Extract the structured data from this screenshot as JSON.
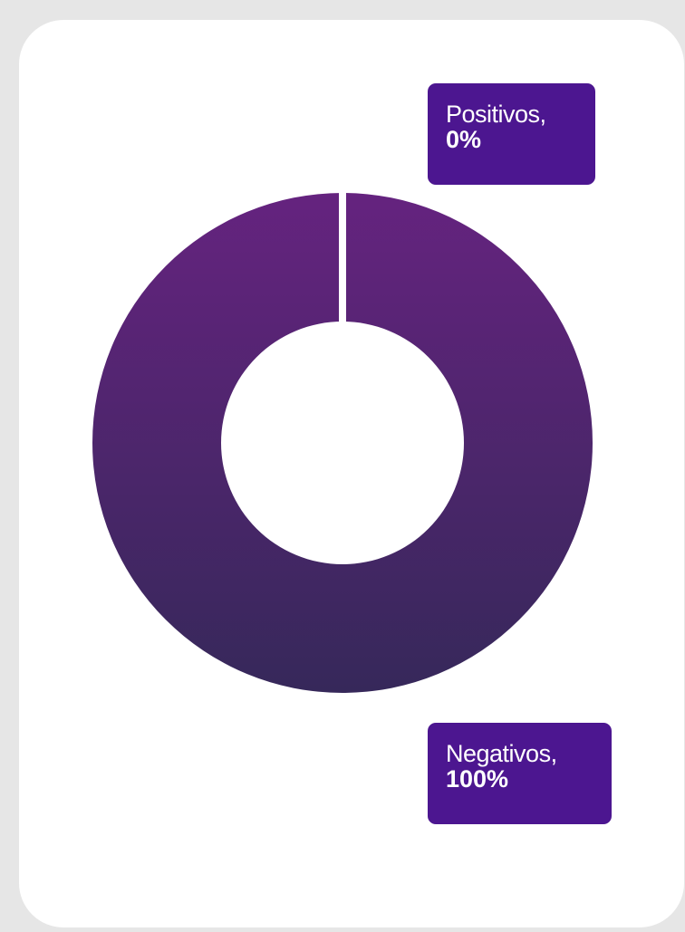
{
  "chart_data": {
    "type": "pie",
    "variant": "donut",
    "title": "",
    "slices": [
      {
        "name": "Positivos",
        "value": 0,
        "display_value": "0%",
        "color": "#4c1690"
      },
      {
        "name": "Negativos",
        "value": 100,
        "display_value": "100%",
        "color": "#4e2672"
      }
    ],
    "gradient": {
      "top": "#65237f",
      "bottom": "#36285a"
    }
  },
  "labels": {
    "positivos": {
      "name": "Positivos,",
      "value": "0%"
    },
    "negativos": {
      "name": "Negativos,",
      "value": "100%"
    }
  },
  "colors": {
    "label_background": "#4c1690",
    "card_border": "#e6e6e6",
    "card_background": "#ffffff"
  }
}
